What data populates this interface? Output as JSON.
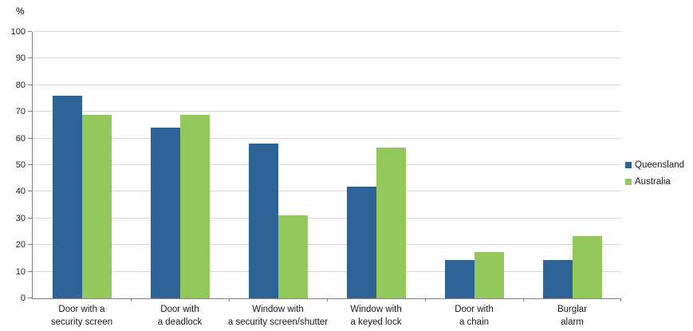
{
  "unit_label": "%",
  "chart_data": {
    "type": "bar",
    "title": "",
    "xlabel": "",
    "ylabel": "%",
    "ylim": [
      0,
      100
    ],
    "ytick_step": 10,
    "grid": true,
    "legend_position": "right",
    "categories": [
      "Door with a\nsecurity screen",
      "Door with\na deadlock",
      "Window with\na security screen/shutter",
      "Window with\na keyed lock",
      "Door with\na chain",
      "Burglar\nalarm"
    ],
    "series": [
      {
        "name": "Queensland",
        "color": "#2e6398",
        "values": [
          76,
          64,
          58,
          42,
          14.5,
          14.5
        ]
      },
      {
        "name": "Australia",
        "color": "#94c85c",
        "values": [
          69,
          69,
          31,
          56.5,
          17.5,
          23.5
        ]
      }
    ]
  }
}
